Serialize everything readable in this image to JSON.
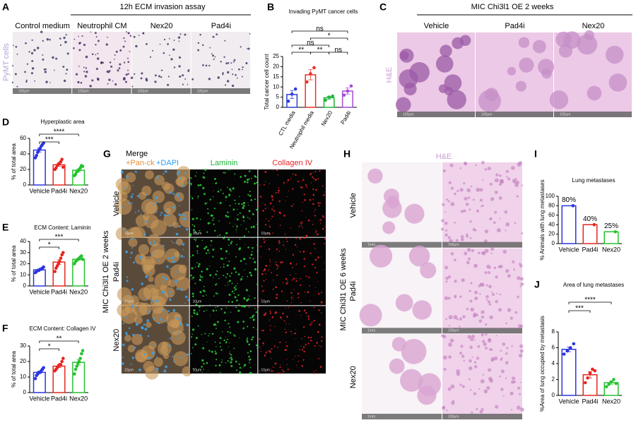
{
  "figure_a": {
    "panel": "A",
    "header": "12h ECM invasion assay",
    "columns": [
      "Control medium",
      "Neutrophil CM",
      "Nex20",
      "Pad4i"
    ],
    "side_label": "PyMT cells",
    "scale_bar": "100μm"
  },
  "figure_c": {
    "panel": "C",
    "header": "MIC Chi3l1 OE 2 weeks",
    "columns": [
      "Vehicle",
      "Pad4i",
      "Nex20"
    ],
    "side_label": "H&E",
    "scale_bar": "100μm"
  },
  "figure_g": {
    "panel": "G",
    "header": "Merge",
    "stain_1": "+Pan-ck",
    "stain_2": "+DAPI",
    "columns": [
      "Laminin",
      "Collagen IV"
    ],
    "rows": [
      "Vehicle",
      "Pad4i",
      "Nex20"
    ],
    "side_label": "MIC Chi3l1 OE 2 weeks",
    "scale_bar": "10μm"
  },
  "figure_h": {
    "panel": "H",
    "header": "H&E",
    "rows": [
      "Vehicle",
      "Pad4i",
      "Nex20"
    ],
    "side_label": "MIC Chi3l1 OE 6 weeks",
    "scale_bars": [
      "1mm",
      "100μm"
    ]
  },
  "chart_data": [
    {
      "type": "bar",
      "panel": "B",
      "title": "Invading PyMT cancer cells",
      "y_label": "Total cancer cell count",
      "categories": [
        "CTL media",
        "Neutrophil media",
        "Nex20",
        "Pad4i"
      ],
      "colors": [
        "#2e3fd6",
        "#e8322a",
        "#1fb53a",
        "#a64bd6"
      ],
      "values": [
        6.3,
        16,
        4.7,
        8
      ],
      "errors": [
        2,
        2.5,
        0.7,
        1.5
      ],
      "points": [
        [
          3,
          6.5,
          9
        ],
        [
          12.5,
          16.5,
          19.5
        ],
        [
          3.5,
          5,
          5.5
        ],
        [
          6,
          8,
          10.5
        ]
      ],
      "ylim": [
        0,
        25
      ],
      "yticks": [
        0,
        5,
        10,
        15,
        20,
        25
      ],
      "brackets": [
        {
          "pair": [
            "CTL media",
            "Neutrophil media"
          ],
          "label": "**"
        },
        {
          "pair": [
            "Neutrophil media",
            "Nex20"
          ],
          "label": "**"
        },
        {
          "pair": [
            "Nex20",
            "Pad4i"
          ],
          "label": "ns"
        },
        {
          "pair": [
            "CTL media",
            "Nex20"
          ],
          "label": "ns"
        },
        {
          "pair": [
            "Neutrophil media",
            "Pad4i"
          ],
          "label": "*"
        },
        {
          "pair": [
            "CTL media",
            "Pad4i"
          ],
          "label": "ns"
        }
      ]
    },
    {
      "type": "bar",
      "panel": "D",
      "title": "Hyperplastic area",
      "y_label": "% of total area",
      "categories": [
        "Vehicle",
        "Pad4i",
        "Nex20"
      ],
      "colors": [
        "#2b35e0",
        "#e52620",
        "#27c22f"
      ],
      "values": [
        45,
        26,
        19
      ],
      "errors": [
        2.5,
        1.8,
        1.8
      ],
      "points": [
        [
          35,
          38,
          42,
          45,
          47,
          50,
          52,
          54
        ],
        [
          20,
          22,
          25,
          27,
          28,
          30,
          33,
          23
        ],
        [
          12,
          14,
          17,
          18,
          20,
          22,
          25,
          24
        ]
      ],
      "ylim": [
        0,
        60
      ],
      "yticks": [
        0,
        20,
        40,
        60
      ],
      "brackets": [
        {
          "pair": [
            "Vehicle",
            "Pad4i"
          ],
          "label": "***"
        },
        {
          "pair": [
            "Vehicle",
            "Nex20"
          ],
          "label": "****"
        }
      ]
    },
    {
      "type": "bar",
      "panel": "E",
      "title": "ECM Content: Laminin",
      "y_label": "% of total area",
      "categories": [
        "Vehicle",
        "Pad4i",
        "Nex20"
      ],
      "colors": [
        "#2b35e0",
        "#e52620",
        "#27c22f"
      ],
      "values": [
        14.5,
        21.5,
        24
      ],
      "errors": [
        0.6,
        2,
        0.8
      ],
      "points": [
        [
          12,
          13,
          14,
          14,
          15,
          15,
          16,
          17
        ],
        [
          13,
          16,
          18,
          20,
          22,
          25,
          28,
          30
        ],
        [
          20,
          22,
          23,
          24,
          25,
          26,
          27,
          24
        ]
      ],
      "ylim": [
        0,
        40
      ],
      "yticks": [
        0,
        10,
        20,
        30,
        40
      ],
      "brackets": [
        {
          "pair": [
            "Vehicle",
            "Pad4i"
          ],
          "label": "*"
        },
        {
          "pair": [
            "Vehicle",
            "Nex20"
          ],
          "label": "***"
        }
      ]
    },
    {
      "type": "bar",
      "panel": "F",
      "title": "ECM Content: Collagen IV",
      "y_label": "% of total area",
      "categories": [
        "Vehicle",
        "Pad4i",
        "Nex20"
      ],
      "colors": [
        "#2b35e0",
        "#e52620",
        "#27c22f"
      ],
      "values": [
        13,
        17,
        19.5
      ],
      "errors": [
        0.8,
        0.9,
        1.8
      ],
      "points": [
        [
          9,
          11,
          12,
          13,
          13,
          14,
          15,
          16
        ],
        [
          14,
          15,
          16,
          17,
          18,
          18,
          20,
          22
        ],
        [
          12,
          15,
          17,
          19,
          20,
          22,
          25,
          27
        ]
      ],
      "ylim": [
        0,
        30
      ],
      "yticks": [
        0,
        10,
        20,
        30
      ],
      "brackets": [
        {
          "pair": [
            "Vehicle",
            "Pad4i"
          ],
          "label": "*"
        },
        {
          "pair": [
            "Vehicle",
            "Nex20"
          ],
          "label": "**"
        }
      ]
    },
    {
      "type": "bar",
      "panel": "I",
      "title": "Lung metastases",
      "y_label": "% Animals with lung metastases",
      "categories": [
        "Vehicle",
        "Pad4i",
        "Nex20"
      ],
      "colors": [
        "#2b35e0",
        "#e52620",
        "#27c22f"
      ],
      "values": [
        80,
        40,
        25
      ],
      "value_labels": [
        "80%",
        "40%",
        "25%"
      ],
      "points": [
        [
          80
        ],
        [
          40
        ],
        [
          25
        ]
      ],
      "ylim": [
        0,
        100
      ],
      "yticks": [
        0,
        20,
        40,
        60,
        80,
        100
      ]
    },
    {
      "type": "bar",
      "panel": "J",
      "title": "Area of lung metastases",
      "y_label": "%Area of lung occupied by metastasis",
      "categories": [
        "Vehicle",
        "Pad4i",
        "Nex20"
      ],
      "colors": [
        "#2b35e0",
        "#e52620",
        "#27c22f"
      ],
      "values": [
        5.8,
        2.6,
        1.6
      ],
      "errors": [
        0.3,
        0.4,
        0.2
      ],
      "points": [
        [
          5.2,
          5.6,
          6,
          6.5
        ],
        [
          1.6,
          2.2,
          2.8,
          3.3,
          3.1
        ],
        [
          1.1,
          1.4,
          1.7,
          2,
          1.5
        ]
      ],
      "ylim": [
        0,
        8
      ],
      "yticks": [
        0,
        2,
        4,
        6,
        8
      ],
      "brackets": [
        {
          "pair": [
            "Vehicle",
            "Pad4i"
          ],
          "label": "***"
        },
        {
          "pair": [
            "Vehicle",
            "Nex20"
          ],
          "label": "****"
        }
      ]
    }
  ]
}
